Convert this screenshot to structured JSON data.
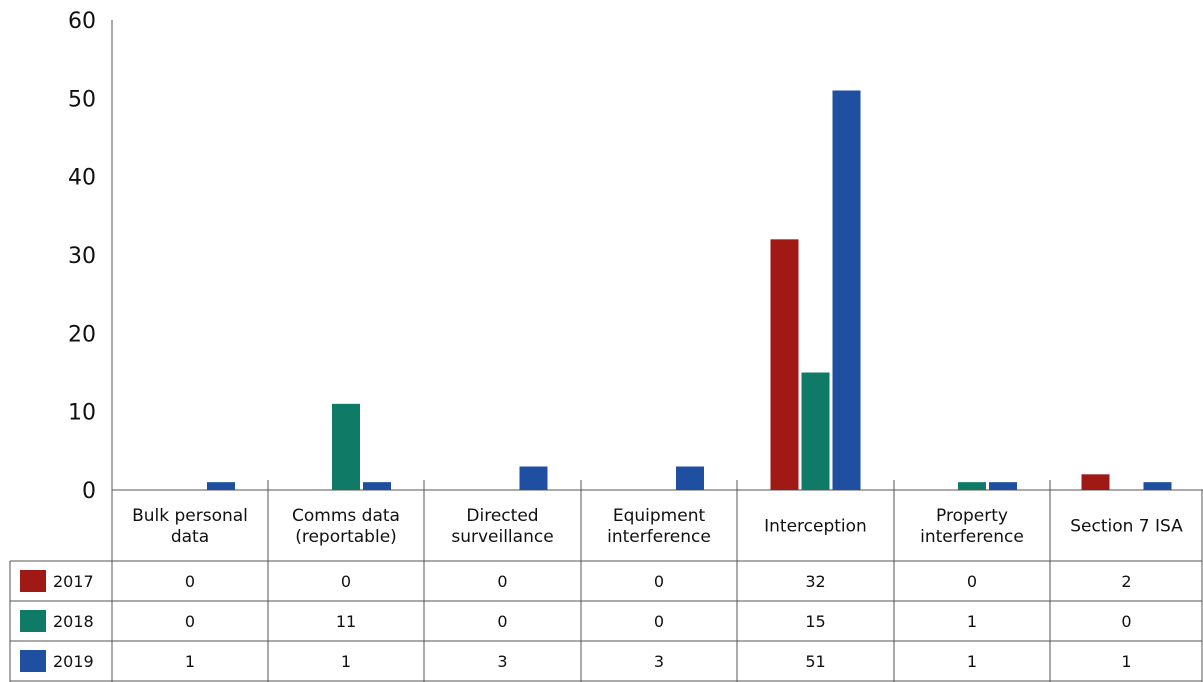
{
  "chart_data": {
    "type": "bar",
    "categories": [
      [
        "Bulk personal",
        "data"
      ],
      [
        "Comms data",
        "(reportable)"
      ],
      [
        "Directed",
        "surveillance"
      ],
      [
        "Equipment",
        "interference"
      ],
      [
        "Interception"
      ],
      [
        "Property",
        "interference"
      ],
      [
        "Section 7 ISA"
      ]
    ],
    "series": [
      {
        "name": "2017",
        "color": "#a01914",
        "values": [
          0,
          0,
          0,
          0,
          32,
          0,
          2
        ]
      },
      {
        "name": "2018",
        "color": "#0f7a66",
        "values": [
          0,
          11,
          0,
          0,
          15,
          1,
          0
        ]
      },
      {
        "name": "2019",
        "color": "#1f4fa0",
        "values": [
          1,
          1,
          3,
          3,
          51,
          1,
          1
        ]
      }
    ],
    "ylim": [
      0,
      60
    ],
    "yticks": [
      "0",
      "10",
      "20",
      "30",
      "40",
      "50",
      "60"
    ],
    "grid": false,
    "legend": "data-table"
  }
}
